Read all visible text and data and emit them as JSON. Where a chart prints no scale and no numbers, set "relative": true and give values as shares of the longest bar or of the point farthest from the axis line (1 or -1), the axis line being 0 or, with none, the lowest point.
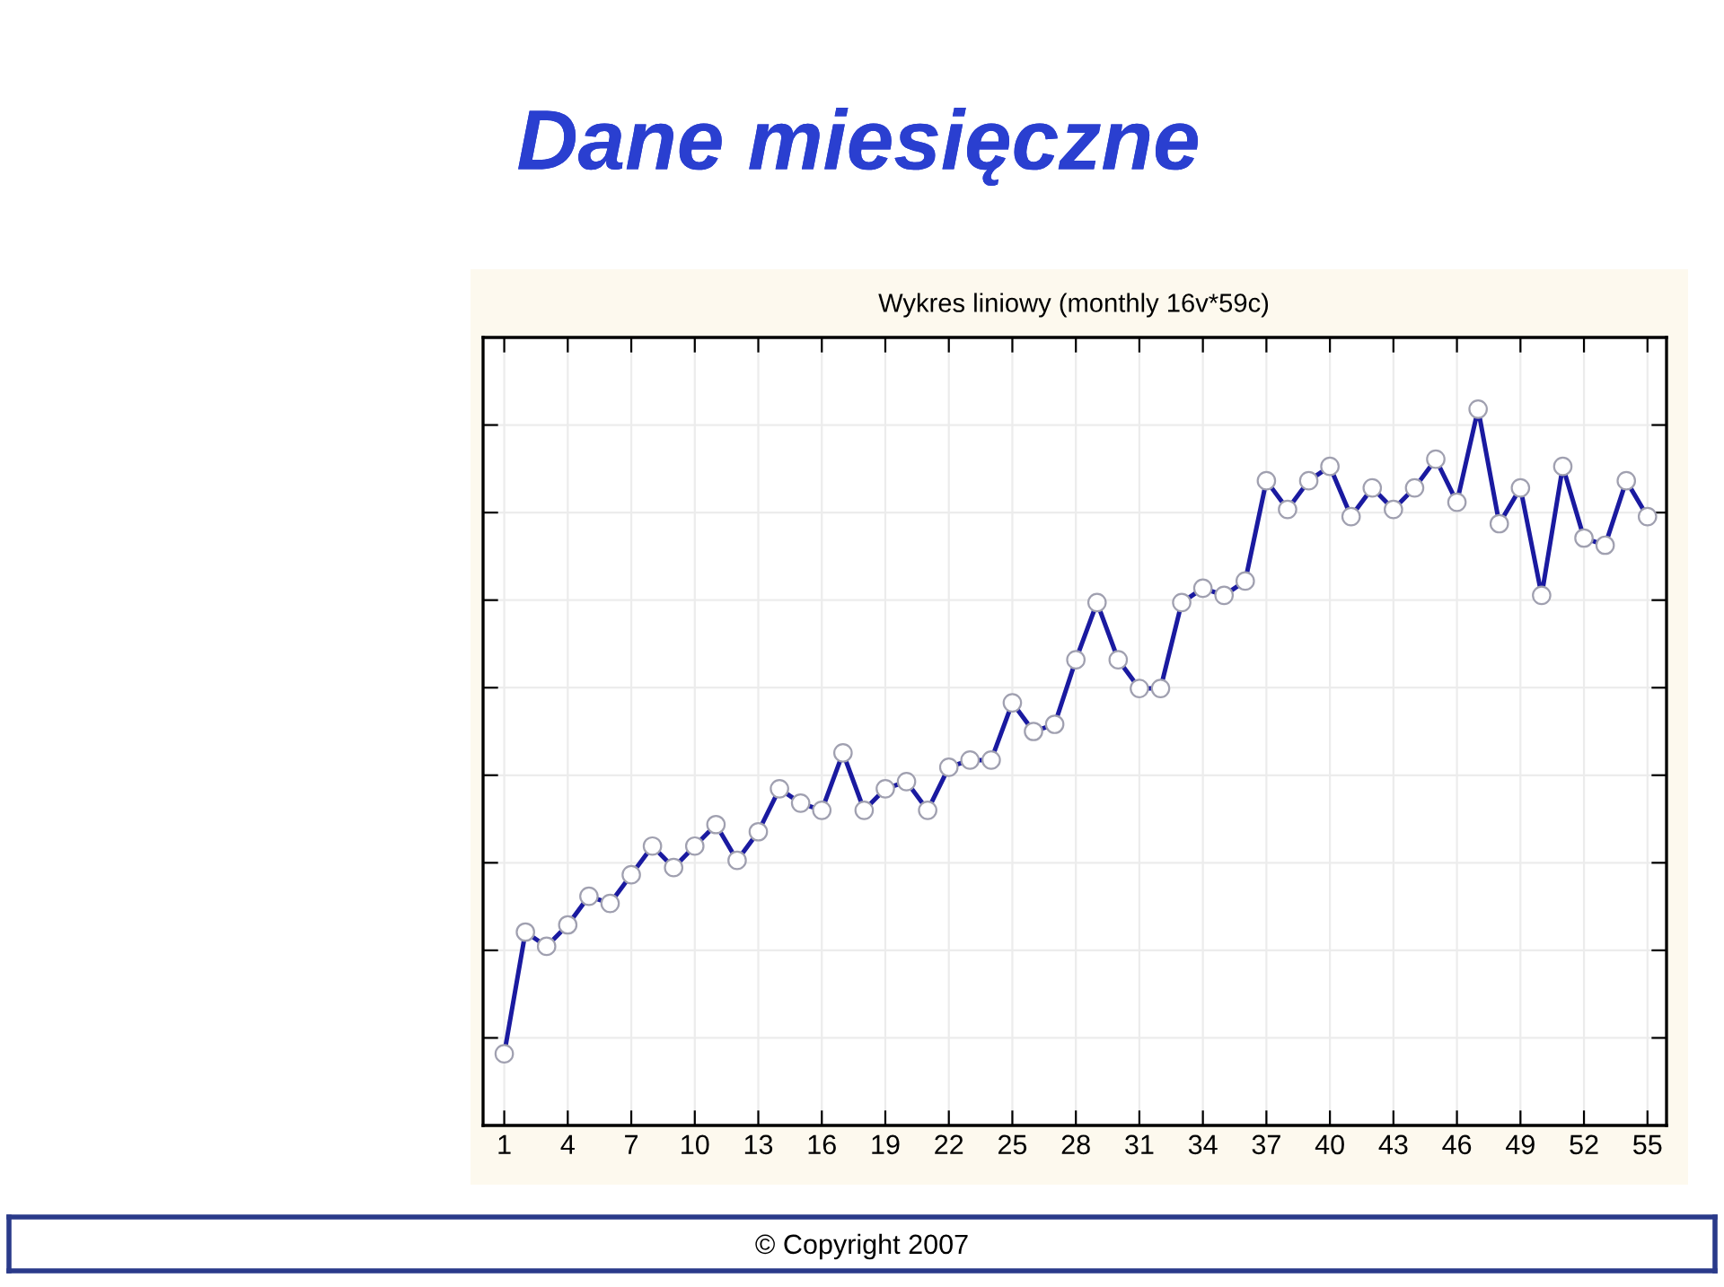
{
  "chart_data": {
    "type": "line",
    "title": "Dane miesięczne",
    "subtitle": "Wykres liniowy (monthly 16v*59c)",
    "relative": true,
    "grid": true,
    "marker": "circle",
    "line_style": "solid",
    "tick_labels": "x",
    "categories": [
      "1",
      null,
      null,
      "4",
      null,
      null,
      "7",
      null,
      null,
      "10",
      null,
      null,
      "13",
      null,
      null,
      "16",
      null,
      null,
      "19",
      null,
      null,
      "22",
      null,
      null,
      "25",
      null,
      null,
      "28",
      null,
      null,
      "31",
      null,
      null,
      "34",
      null,
      null,
      "37",
      null,
      null,
      "40",
      null,
      null,
      "43",
      null,
      null,
      "46",
      null,
      null,
      "49",
      null,
      null,
      "52",
      null,
      null,
      "55"
    ],
    "series": [
      {
        "color": "#1a1aa0",
        "values": [
          0.1,
          0.27,
          0.25,
          0.28,
          0.32,
          0.31,
          0.35,
          0.39,
          0.36,
          0.39,
          0.42,
          0.37,
          0.41,
          0.47,
          0.45,
          0.44,
          0.52,
          0.44,
          0.47,
          0.48,
          0.44,
          0.5,
          0.51,
          0.51,
          0.59,
          0.55,
          0.56,
          0.65,
          0.73,
          0.65,
          0.61,
          0.61,
          0.73,
          0.75,
          0.74,
          0.76,
          0.9,
          0.86,
          0.9,
          0.92,
          0.85,
          0.89,
          0.86,
          0.89,
          0.93,
          0.87,
          1,
          0.84,
          0.89,
          0.74,
          0.92,
          0.82,
          0.81,
          0.9,
          0.85
        ]
      }
    ],
    "annotations": [
      "© Copyright 2007"
    ]
  }
}
